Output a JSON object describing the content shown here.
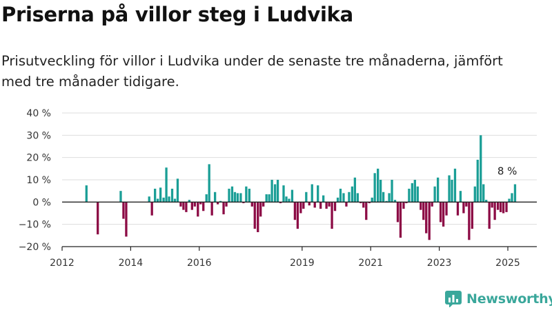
{
  "title": "Priserna på villor steg i Ludvika",
  "subtitle": "Prisutveckling för villor i Ludvika under de senaste tre månaderna, jämfört med tre månader tidigare.",
  "logo": {
    "text": "Newsworthy",
    "icon": "newsworthy-logo-icon"
  },
  "colors": {
    "positive": "#1a9e96",
    "negative": "#8c0b45",
    "grid": "#dddddd",
    "axis": "#222222",
    "logo": "#3aa79b"
  },
  "chart_data": {
    "type": "bar",
    "title": "Priserna på villor steg i Ludvika",
    "subtitle": "Prisutveckling för villor i Ludvika under de senaste tre månaderna, jämfört med tre månader tidigare.",
    "xlabel": "",
    "ylabel": "",
    "unit": "%",
    "ylim": [
      -20,
      40
    ],
    "y_ticks": [
      -20,
      -10,
      0,
      10,
      20,
      30,
      40
    ],
    "y_tick_labels": [
      "−20 %",
      "−10 %",
      "0 %",
      "10 %",
      "20 %",
      "30 %",
      "40 %"
    ],
    "x_ticks": [
      2012,
      2014,
      2016,
      2019,
      2021,
      2023,
      2025
    ],
    "grid": true,
    "annotation": {
      "text": "8 %",
      "target": "last"
    },
    "x": [
      2012.71,
      2013.04,
      2013.71,
      2013.79,
      2013.87,
      2014.54,
      2014.62,
      2014.71,
      2014.79,
      2014.87,
      2014.96,
      2015.04,
      2015.12,
      2015.21,
      2015.29,
      2015.37,
      2015.46,
      2015.54,
      2015.62,
      2015.71,
      2015.79,
      2015.87,
      2015.96,
      2016.04,
      2016.12,
      2016.21,
      2016.29,
      2016.37,
      2016.46,
      2016.54,
      2016.62,
      2016.71,
      2016.79,
      2016.87,
      2016.96,
      2017.04,
      2017.12,
      2017.21,
      2017.29,
      2017.37,
      2017.46,
      2017.54,
      2017.62,
      2017.71,
      2017.79,
      2017.87,
      2017.96,
      2018.04,
      2018.12,
      2018.21,
      2018.29,
      2018.37,
      2018.46,
      2018.54,
      2018.62,
      2018.71,
      2018.79,
      2018.87,
      2018.96,
      2019.04,
      2019.12,
      2019.21,
      2019.29,
      2019.37,
      2019.46,
      2019.54,
      2019.62,
      2019.71,
      2019.79,
      2019.87,
      2019.96,
      2020.04,
      2020.12,
      2020.21,
      2020.29,
      2020.37,
      2020.46,
      2020.54,
      2020.62,
      2020.71,
      2020.79,
      2020.87,
      2020.96,
      2021.04,
      2021.12,
      2021.21,
      2021.29,
      2021.37,
      2021.46,
      2021.54,
      2021.62,
      2021.71,
      2021.79,
      2021.87,
      2021.96,
      2022.04,
      2022.12,
      2022.21,
      2022.29,
      2022.37,
      2022.46,
      2022.54,
      2022.62,
      2022.71,
      2022.79,
      2022.87,
      2022.96,
      2023.04,
      2023.12,
      2023.21,
      2023.29,
      2023.37,
      2023.46,
      2023.54,
      2023.62,
      2023.71,
      2023.79,
      2023.87,
      2023.96,
      2024.04,
      2024.12,
      2024.21,
      2024.29,
      2024.37,
      2024.46,
      2024.54,
      2024.62,
      2024.71,
      2024.79,
      2024.87,
      2024.96,
      2025.04,
      2025.12,
      2025.21
    ],
    "values": [
      7.5,
      -14.5,
      5,
      -7.5,
      -15.5,
      2.5,
      -6,
      6,
      1.5,
      6.5,
      2,
      15.5,
      2.5,
      6,
      1.5,
      10.5,
      -2,
      -3.5,
      -4.5,
      1,
      -3.5,
      -2,
      -6.5,
      -1,
      -4,
      3.5,
      17,
      -6,
      4.5,
      -1,
      0.5,
      -5.5,
      -2,
      6,
      7,
      4.5,
      4,
      4,
      -0.5,
      7,
      6,
      -2,
      -12,
      -13.5,
      -6.5,
      -2,
      3.5,
      3.5,
      10,
      8,
      10,
      -0.5,
      7.5,
      2.5,
      1.5,
      5.5,
      -8,
      -12,
      -5,
      -3,
      4.5,
      -1.5,
      8,
      -2.5,
      7.5,
      -3,
      3,
      -3,
      -2,
      -12,
      -4,
      2,
      6,
      4,
      -2,
      4.5,
      7,
      11,
      4,
      -0.5,
      -2.5,
      -8,
      -0.5,
      2,
      13,
      15,
      10,
      4.5,
      0.5,
      4,
      10,
      1,
      -9,
      -16,
      -3,
      -0.5,
      6,
      8.5,
      10,
      7,
      -3.5,
      -8,
      -14,
      -17,
      -2,
      7,
      11,
      -9,
      -11,
      -6,
      12,
      10,
      15,
      -6,
      5,
      -5,
      -2,
      -17,
      -12,
      7,
      19,
      30,
      8,
      1,
      -12,
      -2.5,
      -8,
      -3.5,
      -4.5,
      -5,
      -4.5,
      1.5,
      4,
      8
    ]
  }
}
